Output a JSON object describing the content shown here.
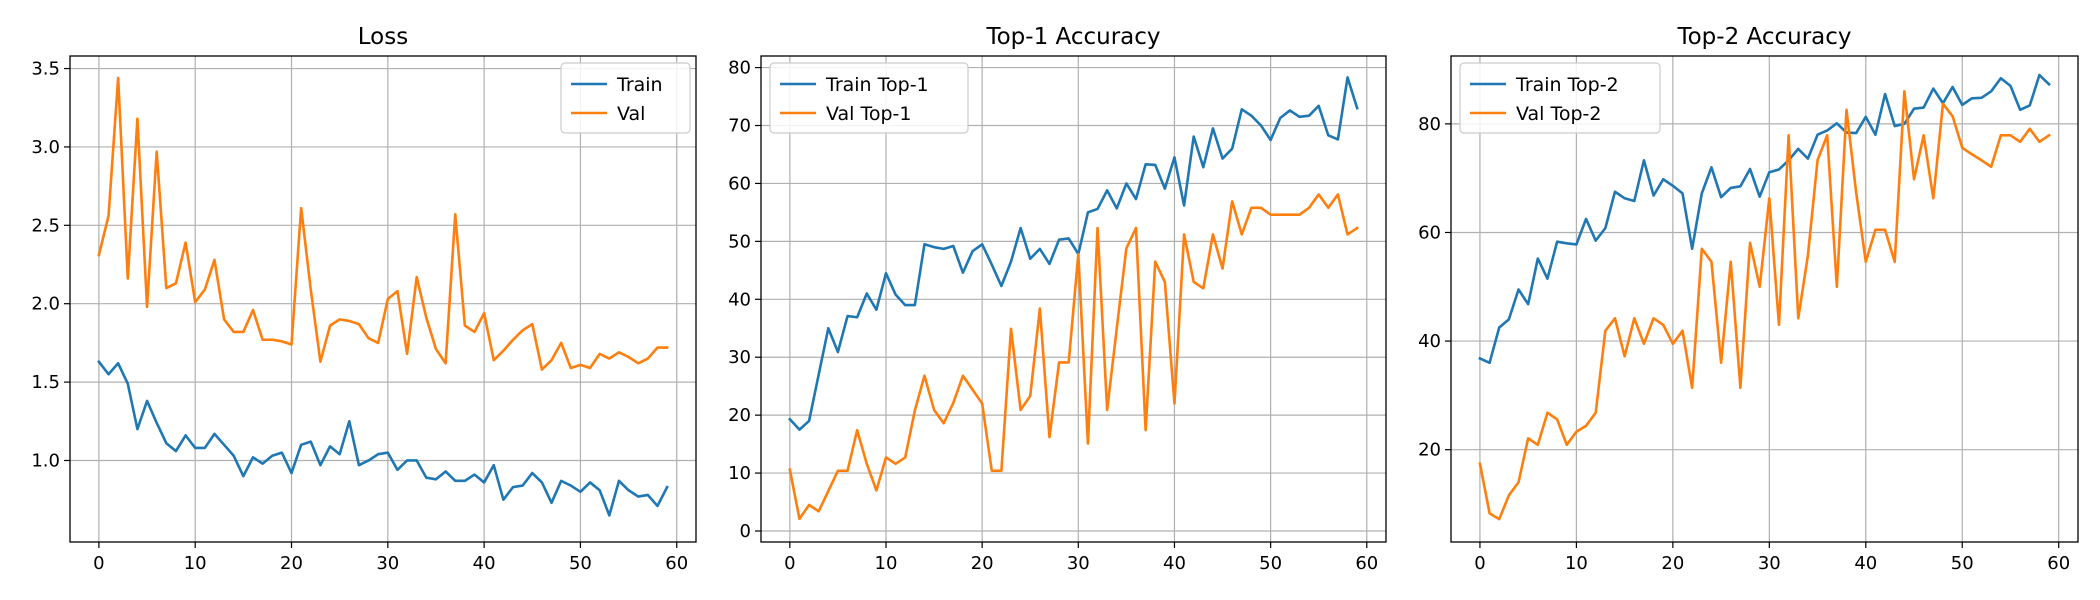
{
  "colors": {
    "train": "#1f77b4",
    "val": "#ff7f0e",
    "grid": "#b0b0b0"
  },
  "chart_data": [
    {
      "type": "line",
      "title": "Loss",
      "xlabel": "",
      "ylabel": "",
      "xlim": [
        -3,
        62
      ],
      "ylim": [
        0.48,
        3.58
      ],
      "xticks": [
        0,
        10,
        20,
        30,
        40,
        50,
        60
      ],
      "yticks": [
        1.0,
        1.5,
        2.0,
        2.5,
        3.0,
        3.5
      ],
      "ytick_labels": [
        "1.0",
        "1.5",
        "2.0",
        "2.5",
        "3.0",
        "3.5"
      ],
      "grid": true,
      "legend_position": "top-right",
      "series": [
        {
          "name": "Train",
          "color": "#1f77b4",
          "values": [
            1.63,
            1.55,
            1.62,
            1.49,
            1.2,
            1.38,
            1.24,
            1.11,
            1.06,
            1.16,
            1.08,
            1.08,
            1.17,
            1.1,
            1.03,
            0.9,
            1.02,
            0.98,
            1.03,
            1.05,
            0.92,
            1.1,
            1.12,
            0.97,
            1.09,
            1.04,
            1.25,
            0.97,
            1.0,
            1.04,
            1.05,
            0.94,
            1.0,
            1.0,
            0.89,
            0.88,
            0.93,
            0.87,
            0.87,
            0.91,
            0.86,
            0.97,
            0.75,
            0.83,
            0.84,
            0.92,
            0.86,
            0.73,
            0.87,
            0.84,
            0.8,
            0.86,
            0.81,
            0.65,
            0.87,
            0.81,
            0.77,
            0.78,
            0.71,
            0.83
          ]
        },
        {
          "name": "Val",
          "color": "#ff7f0e",
          "values": [
            2.31,
            2.56,
            3.44,
            2.16,
            3.18,
            1.98,
            2.97,
            2.1,
            2.13,
            2.39,
            2.01,
            2.09,
            2.28,
            1.9,
            1.82,
            1.82,
            1.96,
            1.77,
            1.77,
            1.76,
            1.74,
            2.61,
            2.09,
            1.63,
            1.86,
            1.9,
            1.89,
            1.87,
            1.78,
            1.75,
            2.03,
            2.08,
            1.68,
            2.17,
            1.91,
            1.71,
            1.62,
            2.57,
            1.86,
            1.82,
            1.94,
            1.64,
            1.7,
            1.77,
            1.83,
            1.87,
            1.58,
            1.64,
            1.75,
            1.59,
            1.61,
            1.59,
            1.68,
            1.65,
            1.69,
            1.66,
            1.62,
            1.65,
            1.72,
            1.72
          ]
        }
      ]
    },
    {
      "type": "line",
      "title": "Top-1 Accuracy",
      "xlabel": "",
      "ylabel": "",
      "xlim": [
        -3,
        62
      ],
      "ylim": [
        -1.9,
        82
      ],
      "xticks": [
        0,
        10,
        20,
        30,
        40,
        50,
        60
      ],
      "yticks": [
        0,
        10,
        20,
        30,
        40,
        50,
        60,
        70,
        80
      ],
      "ytick_labels": [
        "0",
        "10",
        "20",
        "30",
        "40",
        "50",
        "60",
        "70",
        "80"
      ],
      "grid": true,
      "legend_position": "top-left",
      "series": [
        {
          "name": "Train Top-1",
          "color": "#1f77b4",
          "values": [
            19.3,
            17.5,
            19.0,
            27.0,
            35.0,
            30.9,
            37.1,
            36.9,
            41.0,
            38.2,
            44.5,
            40.8,
            39.0,
            39.0,
            49.5,
            49.0,
            48.7,
            49.2,
            44.6,
            48.3,
            49.5,
            46.0,
            42.3,
            46.5,
            52.3,
            47.0,
            48.7,
            46.1,
            50.3,
            50.5,
            47.8,
            55.0,
            55.6,
            58.8,
            55.7,
            60.0,
            57.3,
            63.3,
            63.2,
            59.1,
            64.5,
            56.2,
            68.1,
            62.8,
            69.5,
            64.3,
            66.0,
            72.8,
            71.7,
            70.0,
            67.5,
            71.3,
            72.6,
            71.5,
            71.7,
            73.4,
            68.3,
            67.6,
            78.3,
            73.0
          ]
        },
        {
          "name": "Val Top-1",
          "color": "#ff7f0e",
          "values": [
            10.6,
            2.1,
            4.5,
            3.4,
            6.9,
            10.4,
            10.4,
            17.4,
            11.6,
            7.0,
            12.7,
            11.6,
            12.7,
            20.8,
            26.8,
            20.9,
            18.6,
            22.1,
            26.8,
            24.4,
            22.0,
            10.4,
            10.4,
            34.9,
            20.9,
            23.3,
            38.4,
            16.2,
            29.1,
            29.1,
            47.8,
            15.1,
            52.3,
            20.9,
            35.0,
            48.8,
            52.3,
            17.4,
            46.5,
            43.0,
            22.0,
            51.2,
            43.0,
            41.9,
            51.2,
            45.3,
            56.9,
            51.2,
            55.8,
            55.8,
            54.6,
            54.6,
            54.6,
            54.6,
            55.8,
            58.1,
            55.8,
            58.1,
            51.2,
            52.3
          ]
        }
      ]
    },
    {
      "type": "line",
      "title": "Top-2 Accuracy",
      "xlabel": "",
      "ylabel": "",
      "xlim": [
        -3,
        62
      ],
      "ylim": [
        3,
        92.5
      ],
      "xticks": [
        0,
        10,
        20,
        30,
        40,
        50,
        60
      ],
      "yticks": [
        20,
        40,
        60,
        80
      ],
      "ytick_labels": [
        "20",
        "40",
        "60",
        "80"
      ],
      "grid": true,
      "legend_position": "top-left",
      "series": [
        {
          "name": "Train Top-2",
          "color": "#1f77b4",
          "values": [
            36.8,
            36.0,
            42.5,
            44.0,
            49.5,
            46.8,
            55.2,
            51.5,
            58.3,
            58.0,
            57.8,
            62.5,
            58.5,
            60.8,
            67.5,
            66.3,
            65.8,
            73.3,
            66.8,
            69.8,
            68.6,
            67.2,
            57.0,
            67.2,
            72.0,
            66.5,
            68.2,
            68.5,
            71.7,
            66.6,
            71.1,
            71.6,
            73.3,
            75.4,
            73.6,
            78.0,
            78.8,
            80.1,
            78.4,
            78.3,
            81.3,
            78.0,
            85.5,
            79.6,
            80.0,
            82.8,
            83.0,
            86.5,
            83.8,
            86.8,
            83.5,
            84.7,
            84.8,
            86.0,
            88.4,
            87.0,
            82.6,
            83.4,
            89.0,
            87.3
          ]
        },
        {
          "name": "Val Top-2",
          "color": "#ff7f0e",
          "values": [
            17.4,
            8.3,
            7.2,
            11.6,
            14.0,
            22.1,
            20.9,
            26.8,
            25.6,
            20.9,
            23.3,
            24.4,
            26.8,
            41.9,
            44.2,
            37.2,
            44.2,
            39.5,
            44.2,
            43.0,
            39.5,
            41.9,
            31.4,
            57.0,
            54.6,
            36.0,
            54.6,
            31.4,
            58.1,
            50.0,
            66.3,
            43.0,
            77.9,
            44.2,
            55.8,
            73.3,
            77.9,
            50.0,
            82.6,
            67.4,
            54.6,
            60.5,
            60.5,
            54.6,
            86.0,
            69.8,
            77.9,
            66.3,
            83.7,
            81.4,
            75.6,
            74.4,
            73.3,
            72.1,
            77.9,
            77.9,
            76.7,
            79.1,
            76.7,
            77.9
          ]
        }
      ]
    }
  ]
}
